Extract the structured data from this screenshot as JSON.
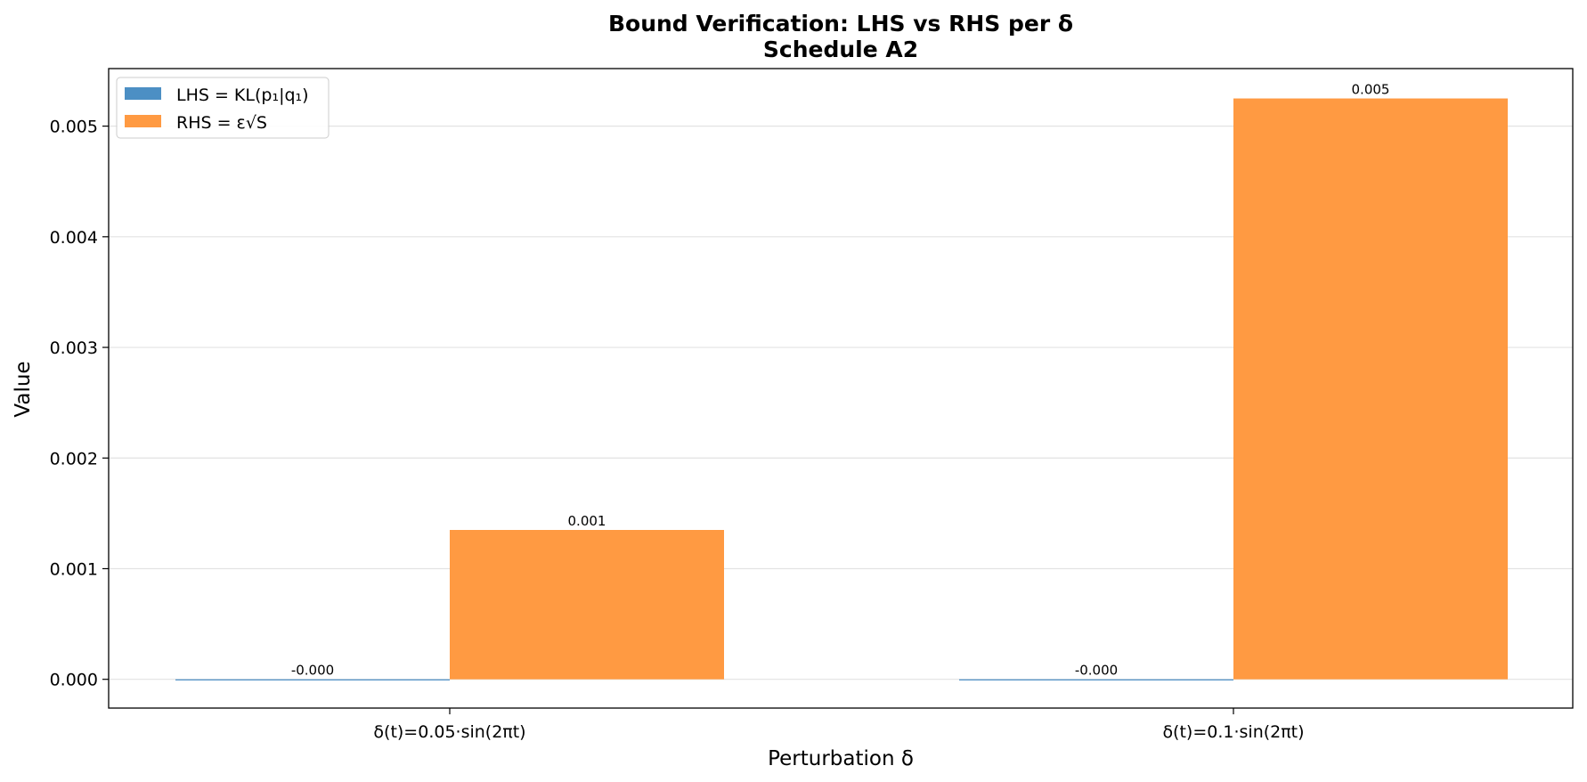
{
  "chart_data": {
    "type": "bar",
    "title": "Bound Verification: LHS vs RHS per δ",
    "subtitle": "Schedule A2",
    "xlabel": "Perturbation δ",
    "ylabel": "Value",
    "categories": [
      "δ(t)=0.05·sin(2πt)",
      "δ(t)=0.1·sin(2πt)"
    ],
    "series": [
      {
        "name": "LHS = KL(p₁|q₁)",
        "values": [
          -1e-05,
          -1e-05
        ],
        "labels": [
          "-0.000",
          "-0.000"
        ],
        "color": "#4c8fc4"
      },
      {
        "name": "RHS = ε√S",
        "values": [
          0.00135,
          0.00525
        ],
        "labels": [
          "0.001",
          "0.005"
        ],
        "color": "#ff9a42"
      }
    ],
    "ylim": [
      -0.00026,
      0.00552
    ],
    "yticks": [
      "0.000",
      "0.001",
      "0.002",
      "0.003",
      "0.004",
      "0.005"
    ],
    "ytick_values": [
      0,
      0.001,
      0.002,
      0.003,
      0.004,
      0.005
    ],
    "grid": "horizontal",
    "legend_position": "top-left"
  }
}
